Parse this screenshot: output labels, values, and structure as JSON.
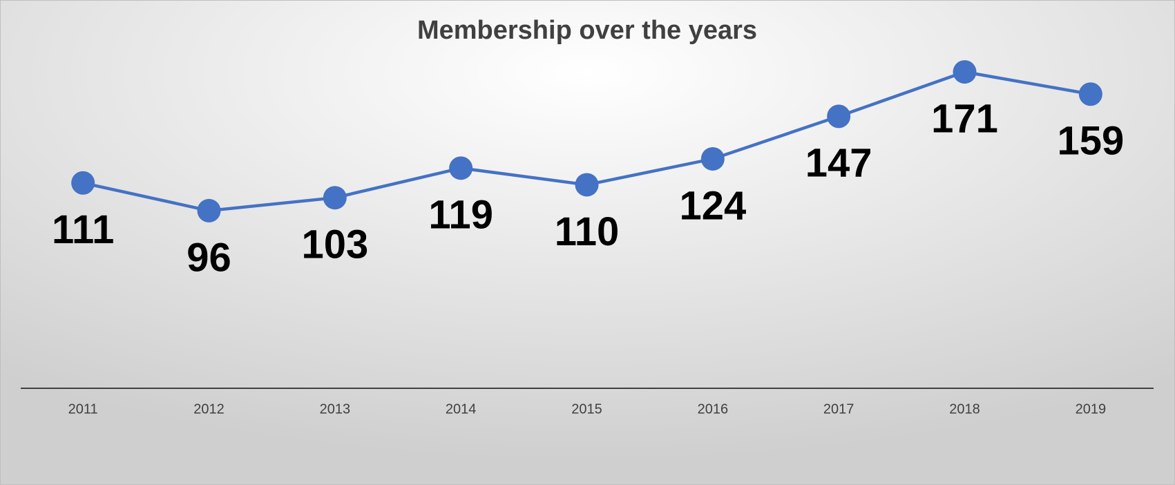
{
  "chart_data": {
    "type": "line",
    "title": "Membership over the years",
    "categories": [
      "2011",
      "2012",
      "2013",
      "2014",
      "2015",
      "2016",
      "2017",
      "2018",
      "2019"
    ],
    "values": [
      111,
      96,
      103,
      119,
      110,
      124,
      147,
      171,
      159
    ],
    "color": "#4472c4",
    "ylim": [
      0,
      180
    ]
  }
}
